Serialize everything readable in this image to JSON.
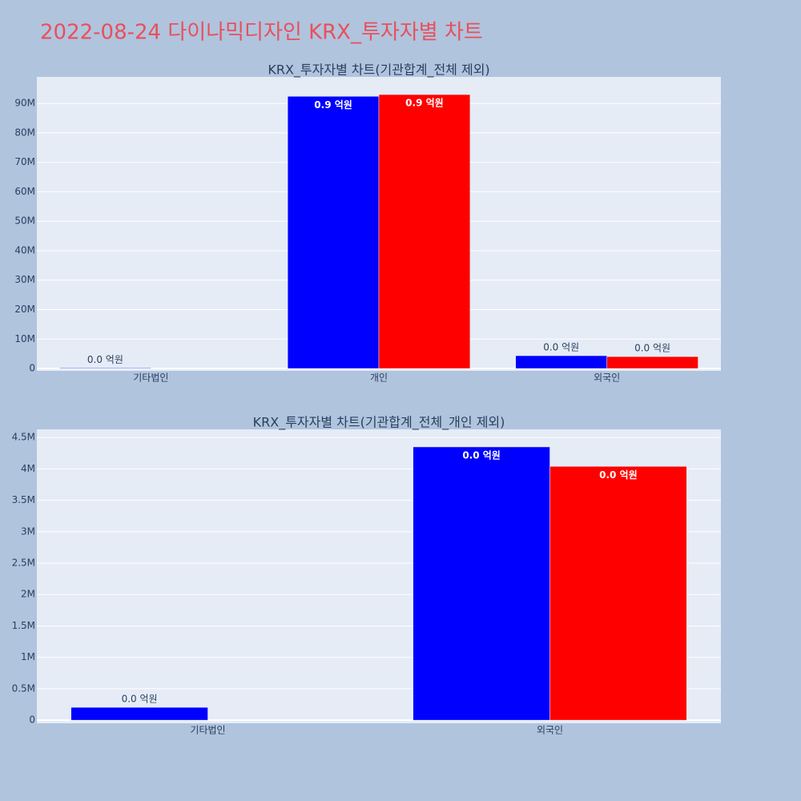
{
  "title": "2022-08-24 다이나믹디자인 KRX_투자자별 차트",
  "chart_data": [
    {
      "type": "bar",
      "title": "KRX_투자자별 차트(기관합계_전체 제외)",
      "categories": [
        "기타법인",
        "개인",
        "외국인"
      ],
      "series": [
        {
          "color": "#0000ff",
          "values": [
            200000,
            92400000,
            4350000
          ],
          "value_labels": [
            "0.0 억원",
            "0.9 억원",
            "0.0 억원"
          ]
        },
        {
          "color": "#ff0000",
          "values": [
            null,
            93000000,
            4040000
          ],
          "value_labels": [
            null,
            "0.9 억원",
            "0.0 억원"
          ]
        }
      ],
      "ylim": [
        -800000,
        99000000
      ],
      "yticks": [
        0,
        {
          "value": 10000000,
          "label": "10M"
        },
        {
          "value": 20000000,
          "label": "20M"
        },
        {
          "value": 30000000,
          "label": "30M"
        },
        {
          "value": 40000000,
          "label": "40M"
        },
        {
          "value": 50000000,
          "label": "50M"
        },
        {
          "value": 60000000,
          "label": "60M"
        },
        {
          "value": 70000000,
          "label": "70M"
        },
        {
          "value": 80000000,
          "label": "80M"
        },
        {
          "value": 90000000,
          "label": "90M"
        }
      ],
      "grid": true
    },
    {
      "type": "bar",
      "title": "KRX_투자자별 차트(기관합계_전체_개인 제외)",
      "categories": [
        "기타법인",
        "외국인"
      ],
      "series": [
        {
          "color": "#0000ff",
          "values": [
            204000,
            4350000
          ],
          "value_labels": [
            "0.0 억원",
            "0.0 억원"
          ]
        },
        {
          "color": "#ff0000",
          "values": [
            null,
            4040000
          ],
          "value_labels": [
            null,
            "0.0 억원"
          ]
        }
      ],
      "ylim": [
        -50000,
        4630000
      ],
      "yticks": [
        0,
        {
          "value": 500000,
          "label": "0.5M"
        },
        {
          "value": 1000000,
          "label": "1M"
        },
        {
          "value": 1500000,
          "label": "1.5M"
        },
        {
          "value": 2000000,
          "label": "2M"
        },
        {
          "value": 2500000,
          "label": "2.5M"
        },
        {
          "value": 3000000,
          "label": "3M"
        },
        {
          "value": 3500000,
          "label": "3.5M"
        },
        {
          "value": 4000000,
          "label": "4M"
        },
        {
          "value": 4500000,
          "label": "4.5M"
        }
      ],
      "grid": true
    }
  ]
}
